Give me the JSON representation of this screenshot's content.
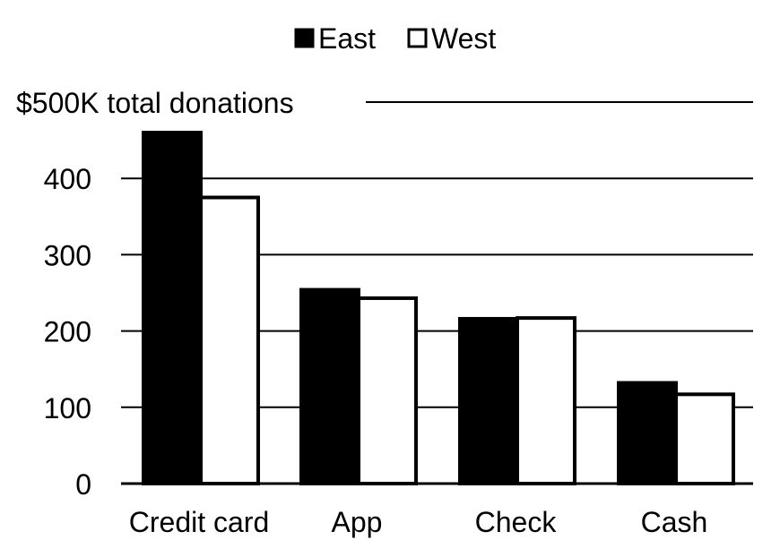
{
  "chart_data": {
    "type": "bar",
    "categories": [
      "Credit card",
      "App",
      "Check",
      "Cash"
    ],
    "series": [
      {
        "name": "East",
        "values": [
          460,
          254,
          216,
          132
        ],
        "color": "#000000"
      },
      {
        "name": "West",
        "values": [
          375,
          243,
          217,
          117
        ],
        "color": "#ffffff"
      }
    ],
    "ylim": [
      0,
      500
    ],
    "yticks": [
      0,
      100,
      200,
      300,
      400
    ],
    "top_label": "$500K total donations",
    "legend_position": "top-center",
    "grid": true
  }
}
